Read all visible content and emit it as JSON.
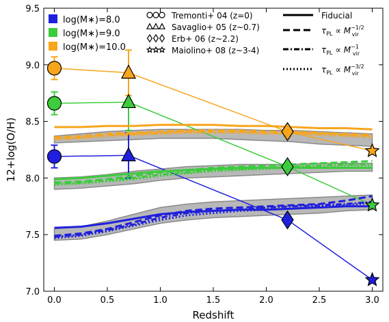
{
  "chart_data": {
    "type": "line",
    "xlabel": "Redshift",
    "ylabel": "12+log(O/H)",
    "xlim": [
      -0.1,
      3.1
    ],
    "ylim": [
      7.0,
      9.5
    ],
    "xticks": [
      0.0,
      0.5,
      1.0,
      1.5,
      2.0,
      2.5,
      3.0
    ],
    "xtick_labels": [
      "0.0",
      "0.5",
      "1.0",
      "1.5",
      "2.0",
      "2.5",
      "3.0"
    ],
    "yticks": [
      7.0,
      7.5,
      8.0,
      8.5,
      9.0,
      9.5
    ],
    "ytick_labels": [
      "7.0",
      "7.5",
      "8.0",
      "8.5",
      "9.0",
      "9.5"
    ],
    "grid": false,
    "colors": {
      "mass8": "#1f1fdd",
      "mass9": "#3ccc3c",
      "mass10": "#f7a51c",
      "band_fill": "#b8b8b8",
      "band_edge": "#8a8a8a"
    },
    "mass_legend": [
      {
        "label": "log(M∗)=8.0",
        "color": "#1f1fdd"
      },
      {
        "label": "log(M∗)=9.0",
        "color": "#3ccc3c"
      },
      {
        "label": "log(M∗)=10.0",
        "color": "#f7a51c"
      }
    ],
    "obs_legend": [
      {
        "label": "Tremonti+ 04 (z=0)",
        "marker": "circle"
      },
      {
        "label": "Savaglio+ 05 (z~0.7)",
        "marker": "triangle"
      },
      {
        "label": "Erb+ 06 (z~2.2)",
        "marker": "diamond"
      },
      {
        "label": "Maiolino+ 08 (z~3-4)",
        "marker": "star"
      }
    ],
    "model_legend": [
      {
        "label": "Fiducial",
        "dash": "solid"
      },
      {
        "label": "τPL ∝ Mvir^-1/2",
        "dash": "dashed"
      },
      {
        "label": "τPL ∝ Mvir^-1",
        "dash": "dashdot"
      },
      {
        "label": "τPL ∝ Mvir^-3/2",
        "dash": "dotted"
      }
    ],
    "observations": [
      {
        "mass": "8.0",
        "color": "#1f1fdd",
        "points": [
          {
            "x": 0.0,
            "y": 8.19,
            "err": 0.1,
            "marker": "circle"
          },
          {
            "x": 0.7,
            "y": 8.2,
            "err": 0.2,
            "marker": "triangle"
          },
          {
            "x": 2.2,
            "y": 7.63,
            "marker": "diamond"
          },
          {
            "x": 3.0,
            "y": 7.1,
            "marker": "star"
          }
        ]
      },
      {
        "mass": "9.0",
        "color": "#3ccc3c",
        "points": [
          {
            "x": 0.0,
            "y": 8.66,
            "err": 0.1,
            "marker": "circle"
          },
          {
            "x": 0.7,
            "y": 8.67,
            "err": 0.25,
            "marker": "triangle"
          },
          {
            "x": 2.2,
            "y": 8.1,
            "marker": "diamond"
          },
          {
            "x": 3.0,
            "y": 7.76,
            "marker": "star"
          }
        ]
      },
      {
        "mass": "10.0",
        "color": "#f7a51c",
        "points": [
          {
            "x": 0.0,
            "y": 8.97,
            "err": 0.1,
            "marker": "circle"
          },
          {
            "x": 0.7,
            "y": 8.93,
            "err": 0.2,
            "marker": "triangle"
          },
          {
            "x": 2.2,
            "y": 8.41,
            "marker": "diamond"
          },
          {
            "x": 3.0,
            "y": 8.24,
            "marker": "star"
          }
        ]
      }
    ],
    "model_bands": [
      {
        "mass": "8.0",
        "x": [
          0.0,
          0.25,
          0.5,
          0.75,
          1.0,
          1.25,
          1.5,
          1.75,
          2.0,
          2.25,
          2.5,
          2.75,
          3.0
        ],
        "lower": [
          7.45,
          7.46,
          7.5,
          7.55,
          7.6,
          7.63,
          7.65,
          7.66,
          7.67,
          7.68,
          7.69,
          7.71,
          7.72
        ],
        "upper": [
          7.55,
          7.57,
          7.62,
          7.68,
          7.74,
          7.77,
          7.79,
          7.8,
          7.81,
          7.82,
          7.83,
          7.84,
          7.85
        ]
      },
      {
        "mass": "9.0",
        "x": [
          0.0,
          0.25,
          0.5,
          0.75,
          1.0,
          1.25,
          1.5,
          1.75,
          2.0,
          2.25,
          2.5,
          2.75,
          3.0
        ],
        "lower": [
          7.9,
          7.91,
          7.93,
          7.95,
          7.98,
          8.0,
          8.01,
          8.02,
          8.03,
          8.04,
          8.05,
          8.06,
          8.06
        ],
        "upper": [
          8.0,
          8.01,
          8.03,
          8.06,
          8.08,
          8.1,
          8.11,
          8.12,
          8.12,
          8.12,
          8.13,
          8.13,
          8.13
        ]
      },
      {
        "mass": "10.0",
        "x": [
          0.0,
          0.25,
          0.5,
          0.75,
          1.0,
          1.25,
          1.5,
          1.75,
          2.0,
          2.25,
          2.5,
          2.75,
          3.0
        ],
        "lower": [
          8.31,
          8.32,
          8.33,
          8.34,
          8.35,
          8.35,
          8.35,
          8.34,
          8.33,
          8.32,
          8.3,
          8.29,
          8.28
        ],
        "upper": [
          8.37,
          8.39,
          8.41,
          8.42,
          8.43,
          8.43,
          8.43,
          8.43,
          8.42,
          8.42,
          8.41,
          8.4,
          8.39
        ]
      }
    ],
    "model_series": [
      {
        "mass": "8.0",
        "model": "Fiducial",
        "color": "#1f1fdd",
        "dash": "solid",
        "x": [
          0.0,
          0.25,
          0.5,
          0.75,
          1.0,
          1.25,
          1.5,
          1.75,
          2.0,
          2.25,
          2.5,
          2.75,
          3.0
        ],
        "y": [
          7.56,
          7.57,
          7.6,
          7.64,
          7.68,
          7.7,
          7.71,
          7.72,
          7.72,
          7.73,
          7.74,
          7.75,
          7.75
        ]
      },
      {
        "mass": "8.0",
        "model": "Mvir^-1/2",
        "color": "#1f1fdd",
        "dash": "dashed",
        "x": [
          0.0,
          0.25,
          0.5,
          0.75,
          1.0,
          1.25,
          1.5,
          1.75,
          2.0,
          2.25,
          2.5,
          2.75,
          3.0
        ],
        "y": [
          7.49,
          7.51,
          7.55,
          7.61,
          7.67,
          7.71,
          7.73,
          7.74,
          7.75,
          7.76,
          7.77,
          7.8,
          7.84
        ]
      },
      {
        "mass": "8.0",
        "model": "Mvir^-1",
        "color": "#1f1fdd",
        "dash": "dashdot",
        "x": [
          0.0,
          0.25,
          0.5,
          0.75,
          1.0,
          1.25,
          1.5,
          1.75,
          2.0,
          2.25,
          2.5,
          2.75,
          3.0
        ],
        "y": [
          7.48,
          7.5,
          7.54,
          7.59,
          7.65,
          7.69,
          7.71,
          7.72,
          7.74,
          7.75,
          7.76,
          7.77,
          7.79
        ]
      },
      {
        "mass": "8.0",
        "model": "Mvir^-3/2",
        "color": "#1f1fdd",
        "dash": "dotted",
        "x": [
          0.0,
          0.25,
          0.5,
          0.75,
          1.0,
          1.25,
          1.5,
          1.75,
          2.0,
          2.25,
          2.5,
          2.75,
          3.0
        ],
        "y": [
          7.47,
          7.49,
          7.53,
          7.58,
          7.63,
          7.67,
          7.69,
          7.71,
          7.72,
          7.73,
          7.75,
          7.76,
          7.78
        ]
      },
      {
        "mass": "9.0",
        "model": "Fiducial",
        "color": "#3ccc3c",
        "dash": "solid",
        "x": [
          0.0,
          0.25,
          0.5,
          0.75,
          1.0,
          1.25,
          1.5,
          1.75,
          2.0,
          2.25,
          2.5,
          2.75,
          3.0
        ],
        "y": [
          7.99,
          8.0,
          8.02,
          8.04,
          8.06,
          8.07,
          8.08,
          8.09,
          8.09,
          8.09,
          8.09,
          8.09,
          8.09
        ]
      },
      {
        "mass": "9.0",
        "model": "Mvir^-1/2",
        "color": "#3ccc3c",
        "dash": "dashed",
        "x": [
          0.0,
          0.25,
          0.5,
          0.75,
          1.0,
          1.25,
          1.5,
          1.75,
          2.0,
          2.25,
          2.5,
          2.75,
          3.0
        ],
        "y": [
          7.96,
          7.97,
          7.99,
          8.02,
          8.05,
          8.07,
          8.09,
          8.1,
          8.11,
          8.12,
          8.13,
          8.14,
          8.15
        ]
      },
      {
        "mass": "9.0",
        "model": "Mvir^-1",
        "color": "#3ccc3c",
        "dash": "dashdot",
        "x": [
          0.0,
          0.25,
          0.5,
          0.75,
          1.0,
          1.25,
          1.5,
          1.75,
          2.0,
          2.25,
          2.5,
          2.75,
          3.0
        ],
        "y": [
          7.95,
          7.96,
          7.98,
          8.0,
          8.03,
          8.05,
          8.07,
          8.08,
          8.09,
          8.1,
          8.11,
          8.12,
          8.12
        ]
      },
      {
        "mass": "9.0",
        "model": "Mvir^-3/2",
        "color": "#3ccc3c",
        "dash": "dotted",
        "x": [
          0.0,
          0.25,
          0.5,
          0.75,
          1.0,
          1.25,
          1.5,
          1.75,
          2.0,
          2.25,
          2.5,
          2.75,
          3.0
        ],
        "y": [
          7.94,
          7.95,
          7.97,
          7.99,
          8.02,
          8.04,
          8.06,
          8.07,
          8.08,
          8.09,
          8.1,
          8.11,
          8.11
        ]
      },
      {
        "mass": "10.0",
        "model": "Fiducial",
        "color": "#f7a51c",
        "dash": "solid",
        "x": [
          0.0,
          0.25,
          0.5,
          0.75,
          1.0,
          1.25,
          1.5,
          1.75,
          2.0,
          2.25,
          2.5,
          2.75,
          3.0
        ],
        "y": [
          8.45,
          8.45,
          8.46,
          8.46,
          8.47,
          8.47,
          8.47,
          8.46,
          8.46,
          8.45,
          8.44,
          8.44,
          8.43
        ]
      },
      {
        "mass": "10.0",
        "model": "Mvir^-1/2",
        "color": "#f7a51c",
        "dash": "dashed",
        "x": [
          0.0,
          0.25,
          0.5,
          0.75,
          1.0,
          1.25,
          1.5,
          1.75,
          2.0,
          2.25,
          2.5,
          2.75,
          3.0
        ],
        "y": [
          8.36,
          8.37,
          8.39,
          8.4,
          8.41,
          8.42,
          8.42,
          8.42,
          8.41,
          8.41,
          8.4,
          8.39,
          8.38
        ]
      },
      {
        "mass": "10.0",
        "model": "Mvir^-1",
        "color": "#f7a51c",
        "dash": "dashdot",
        "x": [
          0.0,
          0.25,
          0.5,
          0.75,
          1.0,
          1.25,
          1.5,
          1.75,
          2.0,
          2.25,
          2.5,
          2.75,
          3.0
        ],
        "y": [
          8.35,
          8.36,
          8.38,
          8.39,
          8.4,
          8.41,
          8.41,
          8.41,
          8.4,
          8.4,
          8.39,
          8.38,
          8.37
        ]
      },
      {
        "mass": "10.0",
        "model": "Mvir^-3/2",
        "color": "#f7a51c",
        "dash": "dotted",
        "x": [
          0.0,
          0.25,
          0.5,
          0.75,
          1.0,
          1.25,
          1.5,
          1.75,
          2.0,
          2.25,
          2.5,
          2.75,
          3.0
        ],
        "y": [
          8.34,
          8.35,
          8.37,
          8.38,
          8.39,
          8.4,
          8.4,
          8.4,
          8.39,
          8.39,
          8.38,
          8.37,
          8.36
        ]
      }
    ]
  }
}
